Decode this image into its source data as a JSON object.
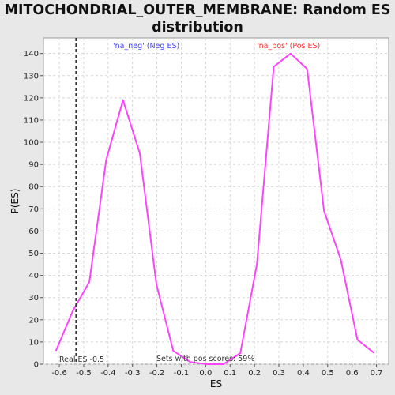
{
  "chart_data": {
    "type": "line",
    "title_lines": [
      "MITOCHONDRIAL_OUTER_MEMBRANE: Random ES",
      "distribution"
    ],
    "xlabel": "ES",
    "ylabel": "P(ES)",
    "xlim": [
      -0.665,
      0.75
    ],
    "ylim": [
      0,
      147
    ],
    "xticks": [
      -0.6,
      -0.5,
      -0.4,
      -0.3,
      -0.2,
      -0.1,
      0.0,
      0.1,
      0.2,
      0.3,
      0.4,
      0.5,
      0.6,
      0.7
    ],
    "xtick_labels": [
      "-0.6",
      "-0.5",
      "-0.4",
      "-0.3",
      "-0.2",
      "-0.1",
      "0.0",
      "0.1",
      "0.2",
      "0.3",
      "0.4",
      "0.5",
      "0.6",
      "0.7"
    ],
    "yticks": [
      0,
      10,
      20,
      30,
      40,
      50,
      60,
      70,
      80,
      90,
      100,
      110,
      120,
      130,
      140
    ],
    "ytick_labels": [
      "0",
      "10",
      "20",
      "30",
      "40",
      "50",
      "60",
      "70",
      "80",
      "90",
      "100",
      "110",
      "120",
      "130",
      "140"
    ],
    "grid": true,
    "series": [
      {
        "color": "#ff44ff",
        "x": [
          -0.614,
          -0.545,
          -0.477,
          -0.408,
          -0.339,
          -0.27,
          -0.202,
          -0.133,
          -0.064,
          0.004,
          0.073,
          0.142,
          0.21,
          0.279,
          0.348,
          0.416,
          0.485,
          0.554,
          0.622,
          0.691
        ],
        "y": [
          6,
          24,
          37,
          92,
          119,
          95,
          36,
          6,
          1,
          0,
          0,
          5,
          45,
          134,
          140,
          133,
          69,
          47,
          11,
          5
        ]
      }
    ],
    "real_es": {
      "x": -0.531,
      "label": "Real ES -0.5",
      "color": "#333333"
    },
    "annotations": {
      "neg": {
        "text": "'na_neg' (Neg ES)",
        "color": "#4040ff"
      },
      "pos": {
        "text": "'na_pos' (Pos ES)",
        "color": "#ff3030"
      },
      "sets": {
        "text": "Sets with pos scores: 59%",
        "color": "#333333"
      }
    }
  }
}
